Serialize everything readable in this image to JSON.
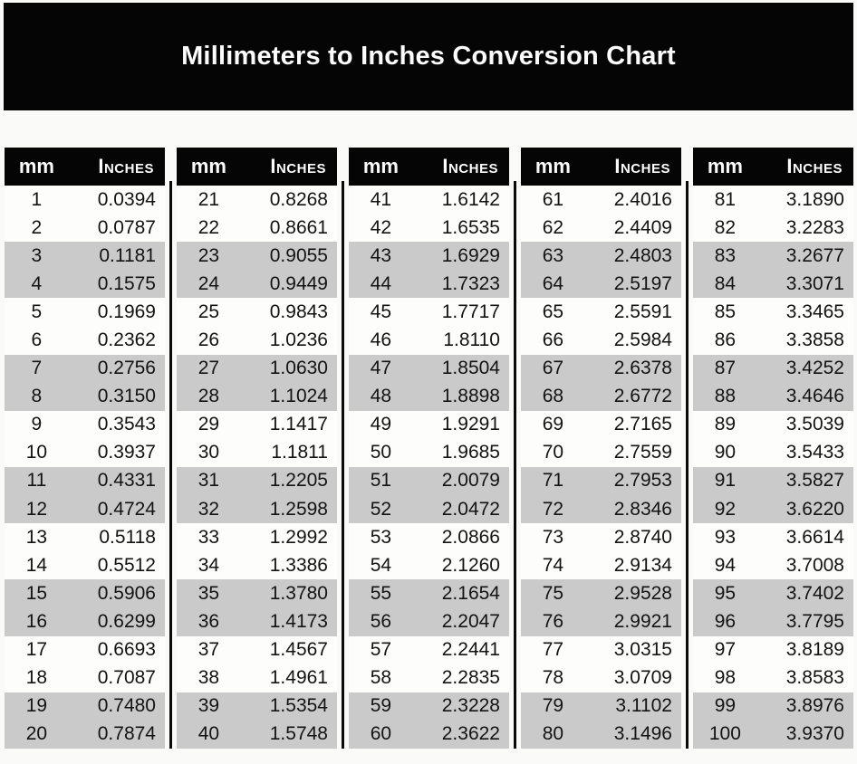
{
  "title": "Millimeters to Inches Conversion Chart",
  "colors": {
    "banner_bg": "#050505",
    "banner_text": "#fdfdfd",
    "header_bg": "#050505",
    "header_text": "#fcfcfc",
    "row_white": "#fdfdfc",
    "row_gray": "#c9cac9",
    "divider": "#0a0a0a",
    "page_bg": "#fafaf8",
    "value_text": "#131313"
  },
  "chart_data": {
    "type": "table",
    "title": "Millimeters to Inches Conversion Chart",
    "column_headers": [
      "mm",
      "Inches"
    ],
    "layout": "5 side-by-side sub-tables of 20 rows each, separated by vertical black rules; rows shaded gray in alternating pairs (rows 3-4, 7-8, 11-12, 15-16, 19-20 of each sub-table)",
    "groups": [
      {
        "rows": [
          [
            "1",
            "0.0394"
          ],
          [
            "2",
            "0.0787"
          ],
          [
            "3",
            "0.1181"
          ],
          [
            "4",
            "0.1575"
          ],
          [
            "5",
            "0.1969"
          ],
          [
            "6",
            "0.2362"
          ],
          [
            "7",
            "0.2756"
          ],
          [
            "8",
            "0.3150"
          ],
          [
            "9",
            "0.3543"
          ],
          [
            "10",
            "0.3937"
          ],
          [
            "11",
            "0.4331"
          ],
          [
            "12",
            "0.4724"
          ],
          [
            "13",
            "0.5118"
          ],
          [
            "14",
            "0.5512"
          ],
          [
            "15",
            "0.5906"
          ],
          [
            "16",
            "0.6299"
          ],
          [
            "17",
            "0.6693"
          ],
          [
            "18",
            "0.7087"
          ],
          [
            "19",
            "0.7480"
          ],
          [
            "20",
            "0.7874"
          ]
        ]
      },
      {
        "rows": [
          [
            "21",
            "0.8268"
          ],
          [
            "22",
            "0.8661"
          ],
          [
            "23",
            "0.9055"
          ],
          [
            "24",
            "0.9449"
          ],
          [
            "25",
            "0.9843"
          ],
          [
            "26",
            "1.0236"
          ],
          [
            "27",
            "1.0630"
          ],
          [
            "28",
            "1.1024"
          ],
          [
            "29",
            "1.1417"
          ],
          [
            "30",
            "1.1811"
          ],
          [
            "31",
            "1.2205"
          ],
          [
            "32",
            "1.2598"
          ],
          [
            "33",
            "1.2992"
          ],
          [
            "34",
            "1.3386"
          ],
          [
            "35",
            "1.3780"
          ],
          [
            "36",
            "1.4173"
          ],
          [
            "37",
            "1.4567"
          ],
          [
            "38",
            "1.4961"
          ],
          [
            "39",
            "1.5354"
          ],
          [
            "40",
            "1.5748"
          ]
        ]
      },
      {
        "rows": [
          [
            "41",
            "1.6142"
          ],
          [
            "42",
            "1.6535"
          ],
          [
            "43",
            "1.6929"
          ],
          [
            "44",
            "1.7323"
          ],
          [
            "45",
            "1.7717"
          ],
          [
            "46",
            "1.8110"
          ],
          [
            "47",
            "1.8504"
          ],
          [
            "48",
            "1.8898"
          ],
          [
            "49",
            "1.9291"
          ],
          [
            "50",
            "1.9685"
          ],
          [
            "51",
            "2.0079"
          ],
          [
            "52",
            "2.0472"
          ],
          [
            "53",
            "2.0866"
          ],
          [
            "54",
            "2.1260"
          ],
          [
            "55",
            "2.1654"
          ],
          [
            "56",
            "2.2047"
          ],
          [
            "57",
            "2.2441"
          ],
          [
            "58",
            "2.2835"
          ],
          [
            "59",
            "2.3228"
          ],
          [
            "60",
            "2.3622"
          ]
        ]
      },
      {
        "rows": [
          [
            "61",
            "2.4016"
          ],
          [
            "62",
            "2.4409"
          ],
          [
            "63",
            "2.4803"
          ],
          [
            "64",
            "2.5197"
          ],
          [
            "65",
            "2.5591"
          ],
          [
            "66",
            "2.5984"
          ],
          [
            "67",
            "2.6378"
          ],
          [
            "68",
            "2.6772"
          ],
          [
            "69",
            "2.7165"
          ],
          [
            "70",
            "2.7559"
          ],
          [
            "71",
            "2.7953"
          ],
          [
            "72",
            "2.8346"
          ],
          [
            "73",
            "2.8740"
          ],
          [
            "74",
            "2.9134"
          ],
          [
            "75",
            "2.9528"
          ],
          [
            "76",
            "2.9921"
          ],
          [
            "77",
            "3.0315"
          ],
          [
            "78",
            "3.0709"
          ],
          [
            "79",
            "3.1102"
          ],
          [
            "80",
            "3.1496"
          ]
        ]
      },
      {
        "rows": [
          [
            "81",
            "3.1890"
          ],
          [
            "82",
            "3.2283"
          ],
          [
            "83",
            "3.2677"
          ],
          [
            "84",
            "3.3071"
          ],
          [
            "85",
            "3.3465"
          ],
          [
            "86",
            "3.3858"
          ],
          [
            "87",
            "3.4252"
          ],
          [
            "88",
            "3.4646"
          ],
          [
            "89",
            "3.5039"
          ],
          [
            "90",
            "3.5433"
          ],
          [
            "91",
            "3.5827"
          ],
          [
            "92",
            "3.6220"
          ],
          [
            "93",
            "3.6614"
          ],
          [
            "94",
            "3.7008"
          ],
          [
            "95",
            "3.7402"
          ],
          [
            "96",
            "3.7795"
          ],
          [
            "97",
            "3.8189"
          ],
          [
            "98",
            "3.8583"
          ],
          [
            "99",
            "3.8976"
          ],
          [
            "100",
            "3.9370"
          ]
        ]
      }
    ]
  }
}
